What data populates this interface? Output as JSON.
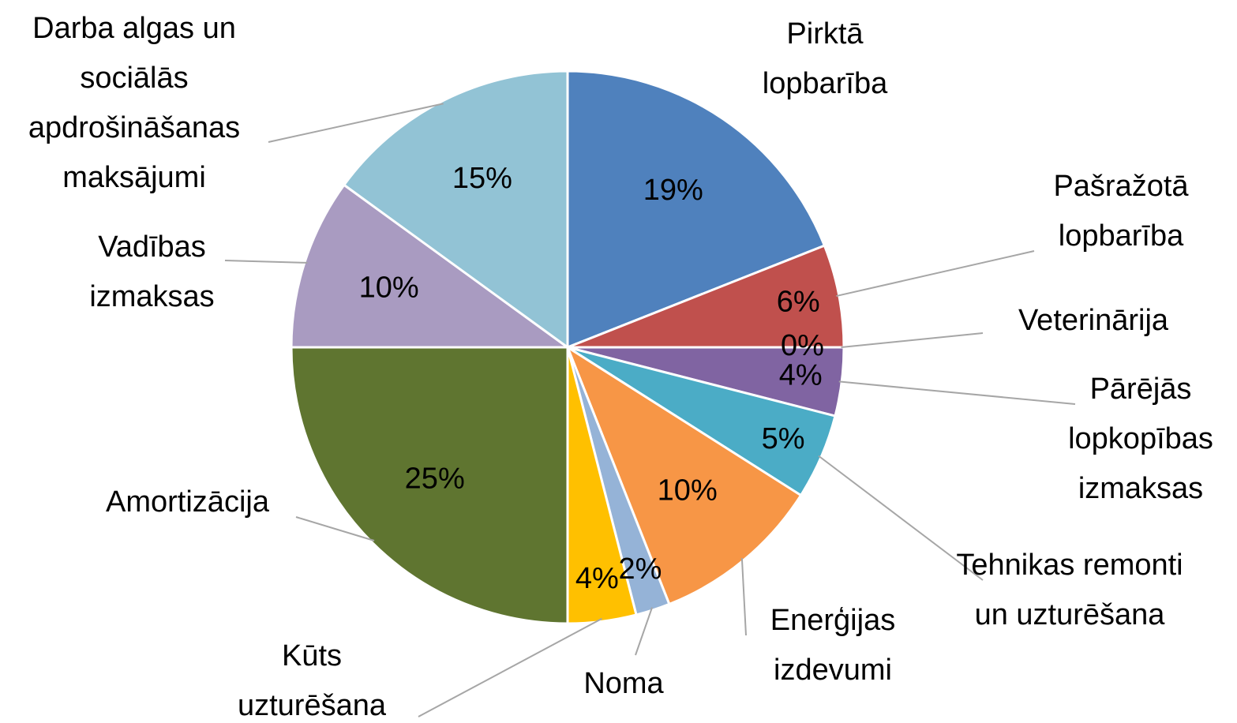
{
  "chart_data": {
    "type": "pie",
    "categories": [
      "Pirktā lopbarība",
      "Pašražotā lopbarība",
      "Veterinārija",
      "Pārējās lopkopības izmaksas",
      "Tehnikas remonti un uzturēšana",
      "Enerģijas izdevumi",
      "Noma",
      "Kūts uzturēšana",
      "Amortizācija",
      "Vadības izmaksas",
      "Darba algas un sociālās apdrošināšanas maksājumi"
    ],
    "values": [
      19,
      6,
      0,
      4,
      5,
      10,
      2,
      4,
      25,
      10,
      15
    ],
    "value_labels": [
      "19%",
      "6%",
      "0%",
      "4%",
      "5%",
      "10%",
      "2%",
      "4%",
      "25%",
      "10%",
      "15%"
    ],
    "colors": [
      "#4f81bd",
      "#c0504d",
      "#9bbb59",
      "#8064a2",
      "#4bacc6",
      "#f79646",
      "#95b3d7",
      "#ffc000",
      "#5f7530",
      "#a99bc1",
      "#92c3d5"
    ]
  }
}
